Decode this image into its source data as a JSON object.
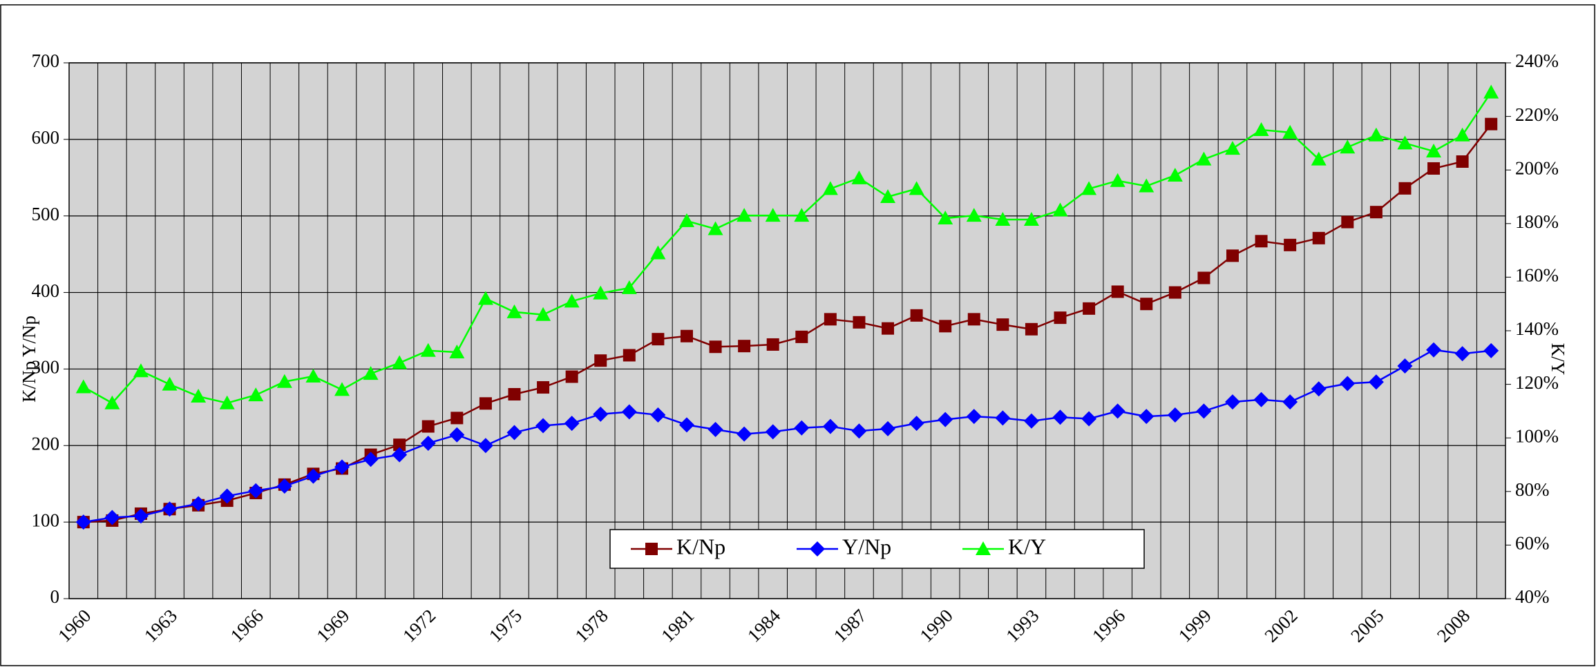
{
  "chart_data": {
    "type": "line",
    "y_label": "K/Np Y/Np",
    "y2_label": "K/Y",
    "categories": [
      "1960",
      null,
      null,
      "1963",
      null,
      null,
      "1966",
      null,
      null,
      "1969",
      null,
      null,
      "1972",
      null,
      null,
      "1975",
      null,
      null,
      "1978",
      null,
      null,
      "1981",
      null,
      null,
      "1984",
      null,
      null,
      "1987",
      null,
      null,
      "1990",
      null,
      null,
      "1993",
      null,
      null,
      "1996",
      null,
      null,
      "1999",
      null,
      null,
      "2002",
      null,
      null,
      "2005",
      null,
      null,
      "2008",
      null
    ],
    "ylim": [
      0,
      700
    ],
    "yticks": [
      0,
      100,
      200,
      300,
      400,
      500,
      600,
      700
    ],
    "y2lim": [
      40,
      240
    ],
    "y2ticks": [
      {
        "value": 40,
        "label": "40%"
      },
      {
        "value": 60,
        "label": "60%"
      },
      {
        "value": 80,
        "label": "80%"
      },
      {
        "value": 100,
        "label": "100%"
      },
      {
        "value": 120,
        "label": "120%"
      },
      {
        "value": 140,
        "label": "140%"
      },
      {
        "value": 160,
        "label": "160%"
      },
      {
        "value": 180,
        "label": "180%"
      },
      {
        "value": 200,
        "label": "200%"
      },
      {
        "value": 220,
        "label": "220%"
      },
      {
        "value": 240,
        "label": "240%"
      }
    ],
    "grid": true,
    "legend": "bottom",
    "series": [
      {
        "name": "K/Np",
        "color": "#800000",
        "marker": "square",
        "values": [
          100,
          102,
          111,
          117,
          122,
          128,
          138,
          149,
          163,
          170,
          188,
          201,
          225,
          236,
          255,
          267,
          276,
          290,
          311,
          318,
          339,
          343,
          329,
          330,
          332,
          342,
          365,
          361,
          353,
          370,
          356,
          365,
          358,
          352,
          367,
          379,
          401,
          385,
          400,
          419,
          448,
          467,
          462,
          471,
          492,
          505,
          536,
          562,
          571,
          620
        ]
      },
      {
        "name": "Y/Np",
        "color": "#0000ff",
        "marker": "diamond",
        "values": [
          100,
          106,
          108,
          117,
          124,
          134,
          141,
          147,
          160,
          172,
          182,
          188,
          203,
          214,
          200,
          217,
          226,
          229,
          241,
          244,
          240,
          227,
          221,
          215,
          218,
          223,
          225,
          219,
          222,
          229,
          234,
          238,
          236,
          232,
          237,
          235,
          245,
          238,
          240,
          245,
          257,
          260,
          257,
          274,
          281,
          283,
          304,
          325,
          320,
          324
        ]
      },
      {
        "name": "K/Y",
        "color": "#00ff00",
        "marker": "triangle",
        "axis": "y2",
        "values": [
          119,
          113,
          125,
          120,
          115.5,
          113,
          116,
          121,
          123,
          118,
          124,
          128,
          132.6,
          132,
          152,
          147,
          146,
          151,
          154,
          156,
          169,
          181,
          178,
          183,
          183,
          183,
          193,
          197,
          190,
          193,
          182,
          183,
          181.5,
          181.5,
          185,
          193,
          196,
          194,
          198,
          204,
          208,
          215,
          214,
          204,
          208.5,
          213,
          210,
          207,
          213,
          229
        ]
      }
    ]
  }
}
